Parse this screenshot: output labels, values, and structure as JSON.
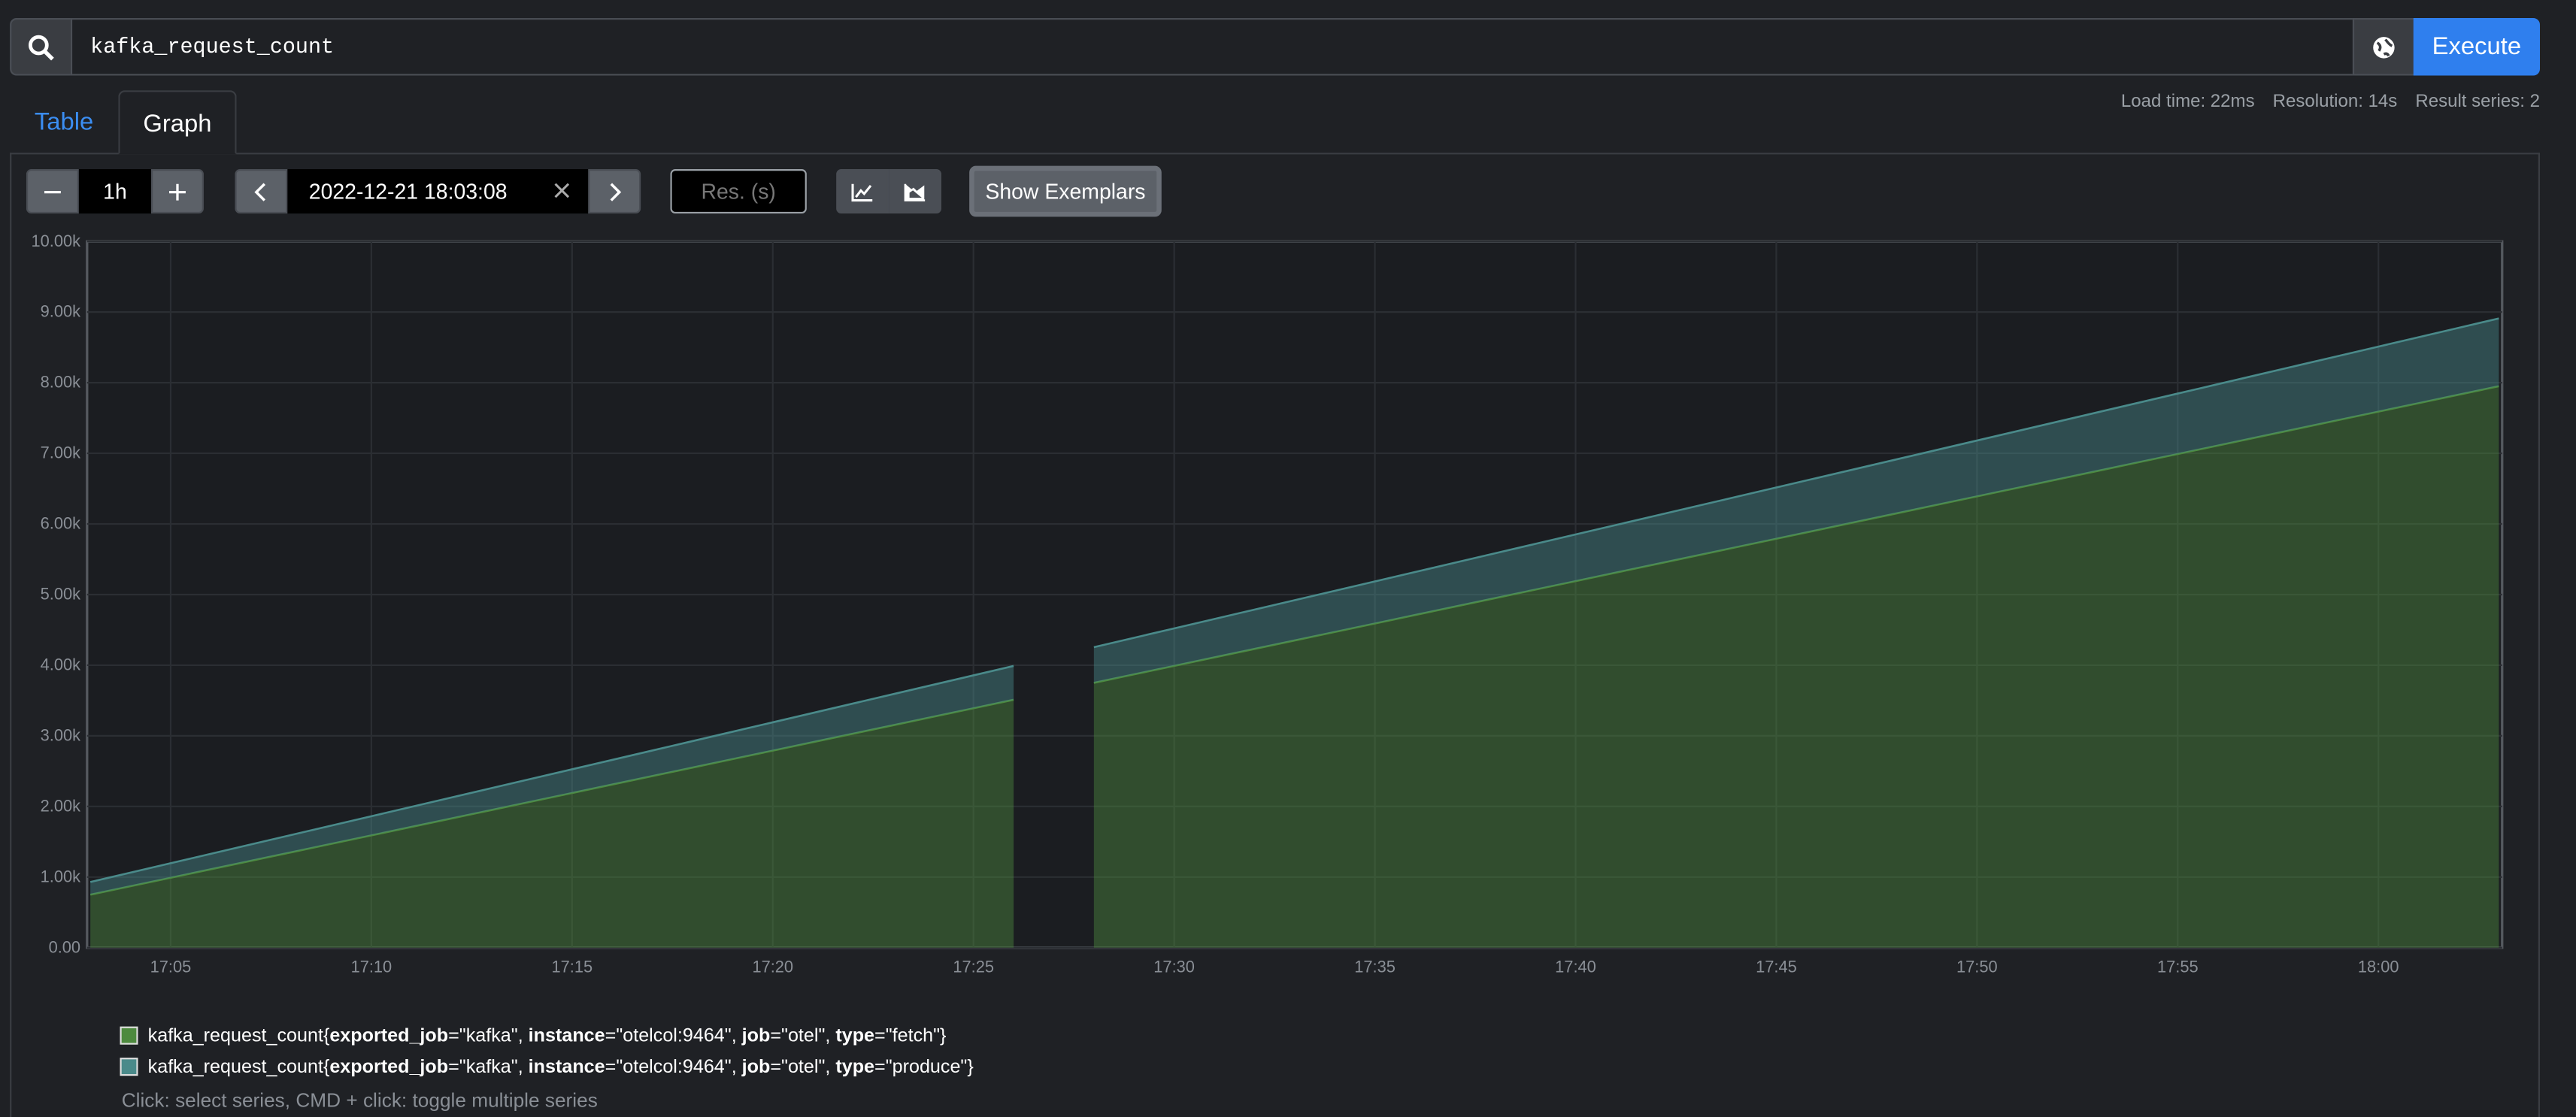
{
  "search": {
    "query": "kafka_request_count",
    "execute": "Execute"
  },
  "tabs": [
    "Table",
    "Graph"
  ],
  "stats": [
    "Load time: 22ms",
    "Resolution: 14s",
    "Result series: 2"
  ],
  "controls": {
    "range": "1h",
    "end_time": "2022-12-21 18:03:08",
    "resolution_placeholder": "Res. (s)",
    "exemplars": "Show Exemplars"
  },
  "chart_data": {
    "type": "area",
    "stacked": true,
    "x": [
      "17:03",
      "17:04",
      "17:05",
      "17:06",
      "17:07",
      "17:08",
      "17:09",
      "17:10",
      "17:11",
      "17:12",
      "17:13",
      "17:14",
      "17:15",
      "17:16",
      "17:17",
      "17:18",
      "17:19",
      "17:20",
      "17:21",
      "17:22",
      "17:23",
      "17:24",
      "17:25",
      "17:26",
      "17:27",
      "17:28",
      "17:29",
      "17:30",
      "17:31",
      "17:32",
      "17:33",
      "17:34",
      "17:35",
      "17:36",
      "17:37",
      "17:38",
      "17:39",
      "17:40",
      "17:41",
      "17:42",
      "17:43",
      "17:44",
      "17:45",
      "17:46",
      "17:47",
      "17:48",
      "17:49",
      "17:50",
      "17:51",
      "17:52",
      "17:53",
      "17:54",
      "17:55",
      "17:56",
      "17:57",
      "17:58",
      "17:59",
      "18:00",
      "18:01",
      "18:02",
      "18:03"
    ],
    "series": [
      {
        "name": "kafka_request_count{exported_job=\"kafka\", instance=\"otelcol:9464\", job=\"otel\", type=\"fetch\"}",
        "color": "#4d8a3e",
        "values": [
          750,
          870,
          990,
          1110,
          1230,
          1350,
          1470,
          1590,
          1710,
          1830,
          1950,
          2070,
          2190,
          2310,
          2430,
          2550,
          2670,
          2790,
          2910,
          3030,
          3150,
          3270,
          3390,
          3510,
          null,
          3750,
          3870,
          3990,
          4110,
          4230,
          4350,
          4470,
          4590,
          4710,
          4830,
          4950,
          5070,
          5190,
          5310,
          5430,
          5550,
          5670,
          5790,
          5910,
          6030,
          6150,
          6270,
          6390,
          6510,
          6630,
          6750,
          6870,
          6990,
          7110,
          7230,
          7350,
          7470,
          7590,
          7710,
          7830,
          7950
        ]
      },
      {
        "name": "kafka_request_count{exported_job=\"kafka\", instance=\"otelcol:9464\", job=\"otel\", type=\"produce\"}",
        "color": "#4a8a8a",
        "values": [
          180,
          193,
          206,
          219,
          232,
          245,
          258,
          271,
          284,
          297,
          310,
          323,
          336,
          349,
          362,
          375,
          388,
          401,
          414,
          427,
          440,
          453,
          466,
          479,
          null,
          505,
          518,
          531,
          544,
          557,
          570,
          583,
          596,
          609,
          622,
          635,
          648,
          661,
          674,
          687,
          700,
          713,
          726,
          739,
          752,
          765,
          778,
          791,
          804,
          817,
          830,
          843,
          856,
          869,
          882,
          895,
          908,
          921,
          934,
          947,
          960
        ]
      }
    ],
    "ylim": [
      0,
      10000
    ],
    "yticks": [
      {
        "value": 0,
        "label": "0.00"
      },
      {
        "value": 1000,
        "label": "1.00k"
      },
      {
        "value": 2000,
        "label": "2.00k"
      },
      {
        "value": 3000,
        "label": "3.00k"
      },
      {
        "value": 4000,
        "label": "4.00k"
      },
      {
        "value": 5000,
        "label": "5.00k"
      },
      {
        "value": 6000,
        "label": "6.00k"
      },
      {
        "value": 7000,
        "label": "7.00k"
      },
      {
        "value": 8000,
        "label": "8.00k"
      },
      {
        "value": 9000,
        "label": "9.00k"
      },
      {
        "value": 10000,
        "label": "10.00k"
      }
    ],
    "xticks": [
      "17:05",
      "17:10",
      "17:15",
      "17:20",
      "17:25",
      "17:30",
      "17:35",
      "17:40",
      "17:45",
      "17:50",
      "17:55",
      "18:00"
    ],
    "grid": true
  },
  "hint": "Click: select series, CMD + click: toggle multiple series"
}
